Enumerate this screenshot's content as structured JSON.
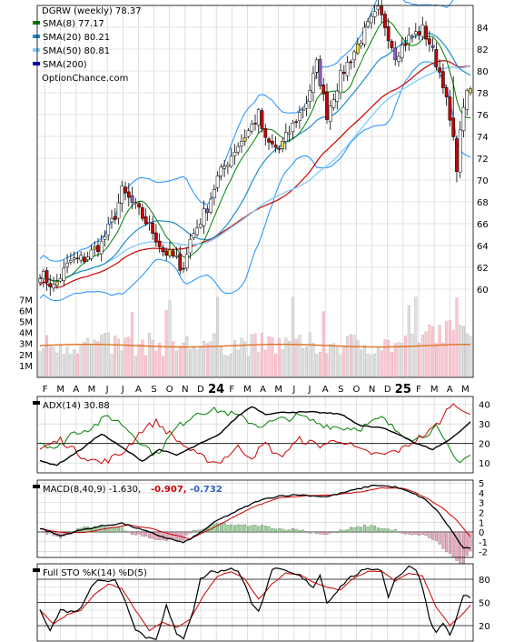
{
  "chart_data": {
    "type": "candlestick",
    "title": "DGRW (weekly) 78.37",
    "watermark": "OptionChance.com",
    "x_months": [
      {
        "label": "F",
        "big": false
      },
      {
        "label": "M",
        "big": false
      },
      {
        "label": "A",
        "big": false
      },
      {
        "label": "M",
        "big": false
      },
      {
        "label": "J",
        "big": false
      },
      {
        "label": "J",
        "big": false
      },
      {
        "label": "A",
        "big": false
      },
      {
        "label": "S",
        "big": false
      },
      {
        "label": "O",
        "big": false
      },
      {
        "label": "N",
        "big": false
      },
      {
        "label": "D",
        "big": false
      },
      {
        "label": "24",
        "big": true
      },
      {
        "label": "F",
        "big": false
      },
      {
        "label": "M",
        "big": false
      },
      {
        "label": "A",
        "big": false
      },
      {
        "label": "M",
        "big": false
      },
      {
        "label": "J",
        "big": false
      },
      {
        "label": "J",
        "big": false
      },
      {
        "label": "A",
        "big": false
      },
      {
        "label": "S",
        "big": false
      },
      {
        "label": "O",
        "big": false
      },
      {
        "label": "N",
        "big": false
      },
      {
        "label": "D",
        "big": false
      },
      {
        "label": "25",
        "big": true
      },
      {
        "label": "F",
        "big": false
      },
      {
        "label": "M",
        "big": false
      },
      {
        "label": "A",
        "big": false
      },
      {
        "label": "M",
        "big": false
      }
    ],
    "price_panel": {
      "legend": [
        {
          "label": "SMA(8) 77.17",
          "color": "#008000"
        },
        {
          "label": "SMA(20) 80.21",
          "color": "#1e90c8"
        },
        {
          "label": "SMA(50) 80.81",
          "color": "#87cefa"
        },
        {
          "label": "SMA(200)",
          "color": "#0000c0"
        }
      ],
      "y_ticks": [
        "84",
        "82",
        "80",
        "78",
        "76",
        "74",
        "72",
        "70",
        "68",
        "66",
        "64",
        "62",
        "60"
      ],
      "ylim": [
        59,
        86
      ],
      "sma200_color": "#cc0000",
      "bollinger_color": "#1e90ff",
      "anchors": [
        [
          0,
          61.5
        ],
        [
          4,
          60.2
        ],
        [
          9,
          62.6
        ],
        [
          13,
          62.8
        ],
        [
          18,
          64.2
        ],
        [
          22,
          66.8
        ],
        [
          24,
          69.0
        ],
        [
          28,
          67.5
        ],
        [
          33,
          65.3
        ],
        [
          36,
          63.5
        ],
        [
          40,
          62.8
        ],
        [
          41,
          61.3
        ],
        [
          44,
          64.5
        ],
        [
          49,
          67.5
        ],
        [
          52,
          70.2
        ],
        [
          57,
          72.8
        ],
        [
          61,
          74.5
        ],
        [
          64,
          76.0
        ],
        [
          66,
          73.5
        ],
        [
          70,
          72.8
        ],
        [
          74,
          75.0
        ],
        [
          78,
          77.2
        ],
        [
          81,
          80.6
        ],
        [
          84,
          76.0
        ],
        [
          88,
          79.5
        ],
        [
          92,
          81.8
        ],
        [
          96,
          84.1
        ],
        [
          99,
          85.5
        ],
        [
          101,
          84.2
        ],
        [
          104,
          81.5
        ],
        [
          108,
          83.0
        ],
        [
          112,
          83.8
        ],
        [
          114,
          82.6
        ],
        [
          118,
          79.0
        ],
        [
          121,
          73.5
        ],
        [
          122,
          71.3
        ],
        [
          124,
          77.0
        ],
        [
          126,
          78.37
        ]
      ]
    },
    "volume_panel": {
      "y_ticks": [
        "7M",
        "6M",
        "5M",
        "4M",
        "3M",
        "2M",
        "1M"
      ],
      "ylim": [
        0,
        7.6
      ],
      "avg_level": 2.8
    },
    "adx_panel": {
      "label": "ADX(14) 30.88",
      "y_ticks": [
        "40",
        "30",
        "20",
        "10"
      ],
      "ylim": [
        5,
        44
      ],
      "adx_anchors": [
        [
          0,
          11
        ],
        [
          5,
          9
        ],
        [
          12,
          17
        ],
        [
          18,
          25
        ],
        [
          24,
          18
        ],
        [
          30,
          11
        ],
        [
          35,
          17
        ],
        [
          40,
          14
        ],
        [
          47,
          20
        ],
        [
          52,
          24
        ],
        [
          58,
          34
        ],
        [
          62,
          39
        ],
        [
          66,
          35
        ],
        [
          72,
          36
        ],
        [
          80,
          36
        ],
        [
          88,
          35
        ],
        [
          94,
          29
        ],
        [
          100,
          28
        ],
        [
          106,
          24
        ],
        [
          110,
          20
        ],
        [
          115,
          17
        ],
        [
          120,
          22
        ],
        [
          126,
          30.88
        ]
      ],
      "plus_di_anchors": [
        [
          0,
          21
        ],
        [
          5,
          17
        ],
        [
          9,
          25
        ],
        [
          15,
          28
        ],
        [
          20,
          34
        ],
        [
          24,
          30
        ],
        [
          30,
          20
        ],
        [
          34,
          14
        ],
        [
          40,
          28
        ],
        [
          46,
          36
        ],
        [
          52,
          37
        ],
        [
          58,
          34
        ],
        [
          64,
          29
        ],
        [
          70,
          32
        ],
        [
          76,
          34
        ],
        [
          82,
          30
        ],
        [
          88,
          28
        ],
        [
          94,
          28
        ],
        [
          100,
          33
        ],
        [
          104,
          27
        ],
        [
          110,
          22
        ],
        [
          116,
          28
        ],
        [
          118,
          22
        ],
        [
          122,
          11
        ],
        [
          126,
          14
        ]
      ],
      "minus_di_anchors": [
        [
          0,
          17
        ],
        [
          6,
          22
        ],
        [
          12,
          14
        ],
        [
          18,
          10
        ],
        [
          24,
          15
        ],
        [
          30,
          27
        ],
        [
          34,
          31
        ],
        [
          40,
          22
        ],
        [
          46,
          14
        ],
        [
          52,
          10
        ],
        [
          58,
          18
        ],
        [
          62,
          13
        ],
        [
          66,
          20
        ],
        [
          70,
          13
        ],
        [
          76,
          22
        ],
        [
          82,
          19
        ],
        [
          88,
          22
        ],
        [
          94,
          16
        ],
        [
          100,
          14
        ],
        [
          106,
          17
        ],
        [
          110,
          22
        ],
        [
          114,
          26
        ],
        [
          118,
          33
        ],
        [
          120,
          40
        ],
        [
          124,
          38
        ],
        [
          126,
          35
        ]
      ]
    },
    "macd_panel": {
      "label": "MACD(8,40,9) -1.630,",
      "value1": "-0.907,",
      "value2": "-0.732",
      "y_ticks": [
        "5",
        "4",
        "3",
        "2",
        "1",
        "0",
        "-1",
        "-2"
      ],
      "ylim": [
        -2.6,
        5.3
      ],
      "macd_anchors": [
        [
          0,
          0.4
        ],
        [
          6,
          -0.4
        ],
        [
          12,
          0.2
        ],
        [
          18,
          0.6
        ],
        [
          24,
          0.9
        ],
        [
          30,
          0.2
        ],
        [
          36,
          -0.5
        ],
        [
          42,
          -1.1
        ],
        [
          46,
          -0.3
        ],
        [
          52,
          1.2
        ],
        [
          58,
          2.2
        ],
        [
          64,
          3.2
        ],
        [
          70,
          3.7
        ],
        [
          76,
          3.8
        ],
        [
          84,
          3.6
        ],
        [
          92,
          4.3
        ],
        [
          98,
          4.8
        ],
        [
          104,
          4.6
        ],
        [
          108,
          4.1
        ],
        [
          112,
          3.5
        ],
        [
          116,
          2.3
        ],
        [
          120,
          0.4
        ],
        [
          124,
          -1.7
        ],
        [
          126,
          -1.63
        ]
      ],
      "signal_anchors": [
        [
          0,
          0.3
        ],
        [
          8,
          -0.1
        ],
        [
          14,
          0.0
        ],
        [
          20,
          0.4
        ],
        [
          26,
          0.7
        ],
        [
          32,
          0.4
        ],
        [
          38,
          -0.2
        ],
        [
          44,
          -0.7
        ],
        [
          50,
          0.3
        ],
        [
          56,
          1.4
        ],
        [
          62,
          2.5
        ],
        [
          70,
          3.5
        ],
        [
          78,
          3.7
        ],
        [
          86,
          3.8
        ],
        [
          94,
          4.1
        ],
        [
          100,
          4.5
        ],
        [
          106,
          4.5
        ],
        [
          110,
          4.0
        ],
        [
          114,
          3.3
        ],
        [
          118,
          2.4
        ],
        [
          122,
          1.2
        ],
        [
          126,
          -0.5
        ]
      ],
      "hist_pos_color": "#98d898",
      "hist_neg_color": "#f0a8c0"
    },
    "sto_panel": {
      "label": "Full STO %K(14) %D(5)",
      "y_ticks": [
        "80",
        "50",
        "20"
      ],
      "ylim": [
        0,
        100
      ],
      "k_anchors": [
        [
          0,
          42
        ],
        [
          3,
          14
        ],
        [
          6,
          40
        ],
        [
          9,
          38
        ],
        [
          12,
          42
        ],
        [
          15,
          72
        ],
        [
          17,
          80
        ],
        [
          20,
          76
        ],
        [
          22,
          80
        ],
        [
          24,
          62
        ],
        [
          26,
          40
        ],
        [
          28,
          16
        ],
        [
          31,
          5
        ],
        [
          34,
          3
        ],
        [
          37,
          46
        ],
        [
          40,
          8
        ],
        [
          42,
          4
        ],
        [
          45,
          42
        ],
        [
          47,
          80
        ],
        [
          50,
          90
        ],
        [
          53,
          90
        ],
        [
          56,
          95
        ],
        [
          58,
          90
        ],
        [
          60,
          72
        ],
        [
          62,
          50
        ],
        [
          64,
          40
        ],
        [
          66,
          62
        ],
        [
          68,
          94
        ],
        [
          72,
          90
        ],
        [
          76,
          84
        ],
        [
          80,
          70
        ],
        [
          82,
          86
        ],
        [
          84,
          50
        ],
        [
          86,
          60
        ],
        [
          90,
          80
        ],
        [
          94,
          90
        ],
        [
          98,
          94
        ],
        [
          100,
          92
        ],
        [
          102,
          56
        ],
        [
          104,
          82
        ],
        [
          106,
          88
        ],
        [
          108,
          96
        ],
        [
          110,
          94
        ],
        [
          112,
          70
        ],
        [
          114,
          30
        ],
        [
          116,
          10
        ],
        [
          118,
          24
        ],
        [
          120,
          8
        ],
        [
          122,
          30
        ],
        [
          124,
          60
        ],
        [
          126,
          56
        ]
      ],
      "d_anchors": [
        [
          0,
          40
        ],
        [
          4,
          22
        ],
        [
          8,
          34
        ],
        [
          12,
          40
        ],
        [
          16,
          60
        ],
        [
          20,
          74
        ],
        [
          24,
          68
        ],
        [
          28,
          40
        ],
        [
          32,
          14
        ],
        [
          36,
          24
        ],
        [
          40,
          18
        ],
        [
          44,
          28
        ],
        [
          48,
          60
        ],
        [
          52,
          84
        ],
        [
          56,
          90
        ],
        [
          60,
          80
        ],
        [
          64,
          54
        ],
        [
          68,
          74
        ],
        [
          72,
          88
        ],
        [
          76,
          86
        ],
        [
          80,
          76
        ],
        [
          84,
          70
        ],
        [
          88,
          66
        ],
        [
          92,
          82
        ],
        [
          96,
          90
        ],
        [
          100,
          90
        ],
        [
          104,
          78
        ],
        [
          108,
          88
        ],
        [
          112,
          84
        ],
        [
          116,
          44
        ],
        [
          120,
          20
        ],
        [
          124,
          36
        ],
        [
          126,
          46
        ]
      ]
    }
  }
}
